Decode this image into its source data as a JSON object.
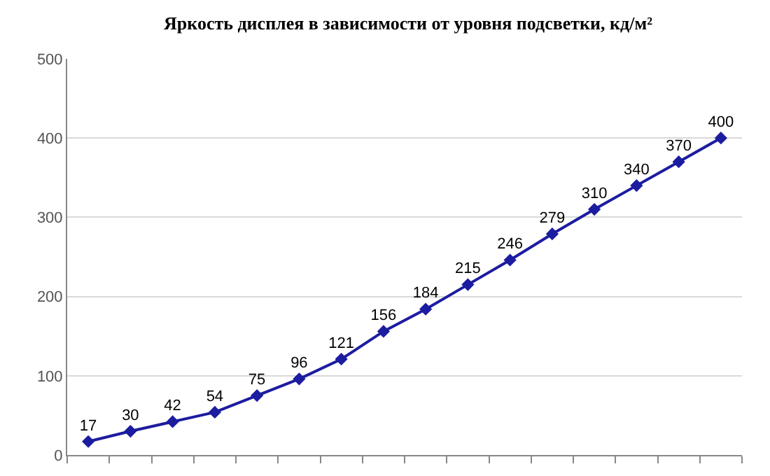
{
  "chart_data": {
    "type": "line",
    "title": "Яркость дисплея в зависимости от уровня подсветки, кд/м²",
    "categories": [
      null,
      null,
      null,
      null,
      null,
      null,
      null,
      null,
      null,
      null,
      null,
      null,
      null,
      null,
      null,
      null
    ],
    "series": [
      {
        "color": "#1c1ca0",
        "values": [
          17,
          30,
          42,
          54,
          75,
          96,
          121,
          156,
          184,
          215,
          246,
          279,
          310,
          340,
          370,
          400
        ]
      }
    ],
    "ylim": [
      0,
      500
    ],
    "yticks": [
      0,
      100,
      200,
      300,
      400,
      500
    ],
    "grid": "y",
    "marker": "diamond",
    "line_style": "solid",
    "data_labels": true,
    "tick_labels": "y"
  }
}
